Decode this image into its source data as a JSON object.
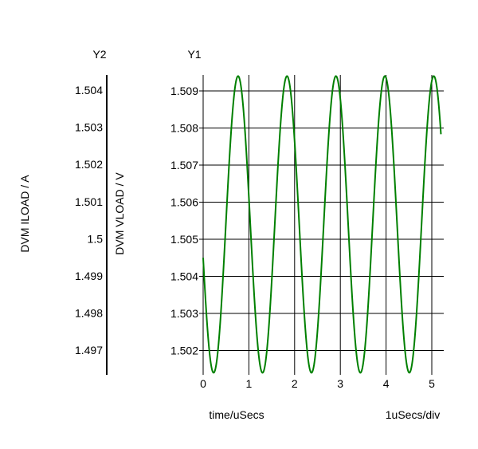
{
  "chart_data": {
    "type": "line",
    "title": "",
    "xlabel": "time/uSecs",
    "x_scale_label": "1uSecs/div",
    "y1": {
      "name": "Y1",
      "label": "DVM VLOAD / V",
      "ticks": [
        "1.502",
        "1.503",
        "1.504",
        "1.505",
        "1.506",
        "1.507",
        "1.508",
        "1.509"
      ],
      "ylim": [
        1.5014,
        1.5094
      ]
    },
    "y2": {
      "name": "Y2",
      "label": "DVM ILOAD / A",
      "ticks": [
        "1.497",
        "1.498",
        "1.499",
        "1.5",
        "1.501",
        "1.502",
        "1.503",
        "1.504"
      ],
      "ylim": [
        1.4963,
        1.5043
      ]
    },
    "x_ticks": [
      "0",
      "1",
      "2",
      "3",
      "4",
      "5"
    ],
    "xlim": [
      0,
      5.2
    ],
    "grid": true,
    "series": [
      {
        "color": "#008000",
        "axis": "y1",
        "waveform": "sine",
        "period": 1.07,
        "center": 1.5054,
        "amplitude": 0.004,
        "start_value": 1.5045,
        "x": [
          0,
          0.2,
          0.73,
          1.27,
          1.8,
          2.34,
          2.87,
          3.41,
          3.94,
          4.48,
          5.01,
          5.2
        ],
        "values": [
          1.5045,
          1.5014,
          1.5094,
          1.5014,
          1.5094,
          1.5014,
          1.5094,
          1.5014,
          1.5094,
          1.5014,
          1.5094,
          1.5045
        ]
      }
    ]
  }
}
